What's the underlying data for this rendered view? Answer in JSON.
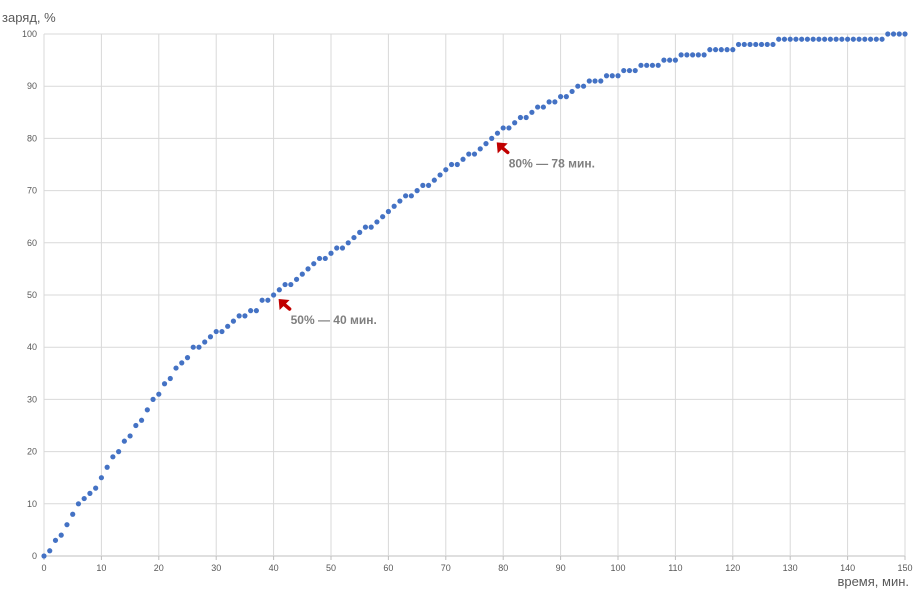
{
  "chart_data": {
    "type": "scatter",
    "ylabel": "заряд, %",
    "xlabel": "время, мин.",
    "xlim": [
      0,
      150
    ],
    "ylim": [
      0,
      100
    ],
    "x_ticks": [
      0,
      10,
      20,
      30,
      40,
      50,
      60,
      70,
      80,
      90,
      100,
      110,
      120,
      130,
      140,
      150
    ],
    "y_ticks": [
      0,
      10,
      20,
      30,
      40,
      50,
      60,
      70,
      80,
      90,
      100
    ],
    "grid": true,
    "marker_color": "#4472c4",
    "annotation_color": "#c00000",
    "annotations": [
      {
        "text": "50% — 40 мин.",
        "x": 40,
        "y": 50
      },
      {
        "text": "80% — 78 мин.",
        "x": 78,
        "y": 80
      }
    ],
    "series": [
      {
        "x": [
          0,
          1,
          2,
          3,
          4,
          5,
          6,
          7,
          8,
          9,
          10,
          11,
          12,
          13,
          14,
          15,
          16,
          17,
          18,
          19,
          20,
          21,
          22,
          23,
          24,
          25,
          26,
          27,
          28,
          29,
          30,
          31,
          32,
          33,
          34,
          35,
          36,
          37,
          38,
          39,
          40,
          41,
          42,
          43,
          44,
          45,
          46,
          47,
          48,
          49,
          50,
          51,
          52,
          53,
          54,
          55,
          56,
          57,
          58,
          59,
          60,
          61,
          62,
          63,
          64,
          65,
          66,
          67,
          68,
          69,
          70,
          71,
          72,
          73,
          74,
          75,
          76,
          77,
          78,
          79,
          80,
          81,
          82,
          83,
          84,
          85,
          86,
          87,
          88,
          89,
          90,
          91,
          92,
          93,
          94,
          95,
          96,
          97,
          98,
          99,
          100,
          101,
          102,
          103,
          104,
          105,
          106,
          107,
          108,
          109,
          110,
          111,
          112,
          113,
          114,
          115,
          116,
          117,
          118,
          119,
          120,
          121,
          122,
          123,
          124,
          125,
          126,
          127,
          128,
          129,
          130,
          131,
          132,
          133,
          134,
          135,
          136,
          137,
          138,
          139,
          140,
          141,
          142,
          143,
          144,
          145,
          146,
          147,
          148,
          149,
          150
        ],
        "y": [
          0,
          1,
          3,
          4,
          6,
          8,
          10,
          11,
          12,
          13,
          15,
          17,
          19,
          20,
          22,
          23,
          25,
          26,
          28,
          30,
          31,
          33,
          34,
          36,
          37,
          38,
          40,
          40,
          41,
          42,
          43,
          43,
          44,
          45,
          46,
          46,
          47,
          47,
          49,
          49,
          50,
          51,
          52,
          52,
          53,
          54,
          55,
          56,
          57,
          57,
          58,
          59,
          59,
          60,
          61,
          62,
          63,
          63,
          64,
          65,
          66,
          67,
          68,
          69,
          69,
          70,
          71,
          71,
          72,
          73,
          74,
          75,
          75,
          76,
          77,
          77,
          78,
          79,
          80,
          81,
          82,
          82,
          83,
          84,
          84,
          85,
          86,
          86,
          87,
          87,
          88,
          88,
          89,
          90,
          90,
          91,
          91,
          91,
          92,
          92,
          92,
          93,
          93,
          93,
          94,
          94,
          94,
          94,
          95,
          95,
          95,
          96,
          96,
          96,
          96,
          96,
          97,
          97,
          97,
          97,
          97,
          98,
          98,
          98,
          98,
          98,
          98,
          98,
          99,
          99,
          99,
          99,
          99,
          99,
          99,
          99,
          99,
          99,
          99,
          99,
          99,
          99,
          99,
          99,
          99,
          99,
          99,
          100,
          100,
          100,
          100
        ]
      }
    ]
  }
}
